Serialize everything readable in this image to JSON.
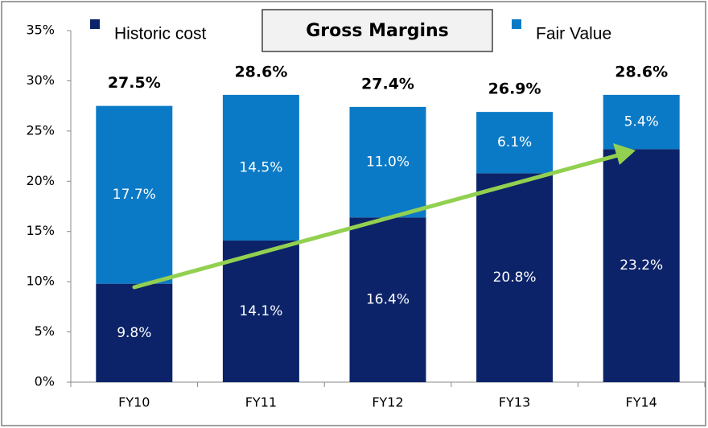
{
  "chart_data": {
    "type": "stacked-bar",
    "title": "Gross Margins",
    "categories": [
      "FY10",
      "FY11",
      "FY12",
      "FY13",
      "FY14"
    ],
    "series": [
      {
        "name": "Historic cost",
        "color": "#0c2369",
        "values": [
          9.8,
          14.1,
          16.4,
          20.8,
          23.2
        ],
        "value_labels": [
          "9.8%",
          "14.1%",
          "16.4%",
          "20.8%",
          "23.2%"
        ]
      },
      {
        "name": "Fair Value",
        "color": "#0b7ac6",
        "values": [
          17.7,
          14.5,
          11.0,
          6.1,
          5.4
        ],
        "value_labels": [
          "17.7%",
          "14.5%",
          "11.0%",
          "6.1%",
          "5.4%"
        ]
      }
    ],
    "totals": [
      27.5,
      28.6,
      27.4,
      26.9,
      28.6
    ],
    "total_labels": [
      "27.5%",
      "28.6%",
      "27.4%",
      "26.9%",
      "28.6%"
    ],
    "ylim": [
      0,
      35
    ],
    "yticks": [
      {
        "value": 0,
        "label": "0%"
      },
      {
        "value": 5,
        "label": "5%"
      },
      {
        "value": 10,
        "label": "10%"
      },
      {
        "value": 15,
        "label": "15%"
      },
      {
        "value": 20,
        "label": "20%"
      },
      {
        "value": 25,
        "label": "25%"
      },
      {
        "value": 30,
        "label": "30%"
      },
      {
        "value": 35,
        "label": "35%"
      }
    ]
  }
}
